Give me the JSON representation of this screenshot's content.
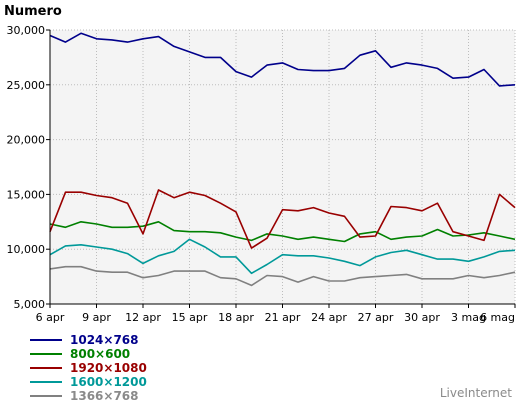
{
  "chart_data": {
    "type": "line",
    "ylabel": "Numero",
    "ylim": [
      5000,
      30000
    ],
    "yticks": [
      5000,
      10000,
      15000,
      20000,
      25000,
      30000
    ],
    "ytick_labels": [
      "5,000",
      "10,000",
      "15,000",
      "20,000",
      "25,000",
      "30,000"
    ],
    "xtick_labels": [
      "6 apr",
      "9 apr",
      "12 apr",
      "15 apr",
      "18 apr",
      "21 apr",
      "24 apr",
      "27 apr",
      "30 apr",
      "3 mag",
      "6 mag"
    ],
    "grid": true,
    "legend_placement": "bottom-left",
    "series": [
      {
        "name": "1024×768",
        "color": "#00008b",
        "values": [
          29500,
          28900,
          29700,
          29200,
          29100,
          28900,
          29200,
          29400,
          28500,
          28000,
          27500,
          27500,
          26200,
          25700,
          26800,
          27000,
          26400,
          26300,
          26300,
          26500,
          27700,
          28100,
          26600,
          27000,
          26800,
          26500,
          25600,
          25700,
          26400,
          24900,
          25000
        ]
      },
      {
        "name": "800×600",
        "color": "#008000",
        "values": [
          12300,
          12000,
          12500,
          12300,
          12000,
          12000,
          12100,
          12500,
          11700,
          11600,
          11600,
          11500,
          11100,
          10800,
          11400,
          11200,
          10900,
          11100,
          10900,
          10700,
          11400,
          11600,
          10900,
          11100,
          11200,
          11800,
          11200,
          11300,
          11500,
          11200,
          10900
        ]
      },
      {
        "name": "1920×1080",
        "color": "#990000",
        "values": [
          11600,
          15200,
          15200,
          14900,
          14700,
          14200,
          11400,
          15400,
          14700,
          15200,
          14900,
          14200,
          13400,
          10100,
          11000,
          13600,
          13500,
          13800,
          13300,
          13000,
          11100,
          11200,
          13900,
          13800,
          13500,
          14200,
          11600,
          11200,
          10800,
          15000,
          13800
        ]
      },
      {
        "name": "1600×1200",
        "color": "#009999",
        "values": [
          9500,
          10300,
          10400,
          10200,
          10000,
          9600,
          8700,
          9400,
          9800,
          10900,
          10200,
          9300,
          9300,
          7800,
          8600,
          9500,
          9400,
          9400,
          9200,
          8900,
          8500,
          9300,
          9700,
          9900,
          9500,
          9100,
          9100,
          8900,
          9300,
          9800,
          9900
        ]
      },
      {
        "name": "1366×768",
        "color": "#808080",
        "values": [
          8200,
          8400,
          8400,
          8000,
          7900,
          7900,
          7400,
          7600,
          8000,
          8000,
          8000,
          7400,
          7300,
          6700,
          7600,
          7500,
          7000,
          7500,
          7100,
          7100,
          7400,
          7500,
          7600,
          7700,
          7300,
          7300,
          7300,
          7600,
          7400,
          7600,
          7900
        ]
      }
    ]
  },
  "brand": "LiveInternet"
}
